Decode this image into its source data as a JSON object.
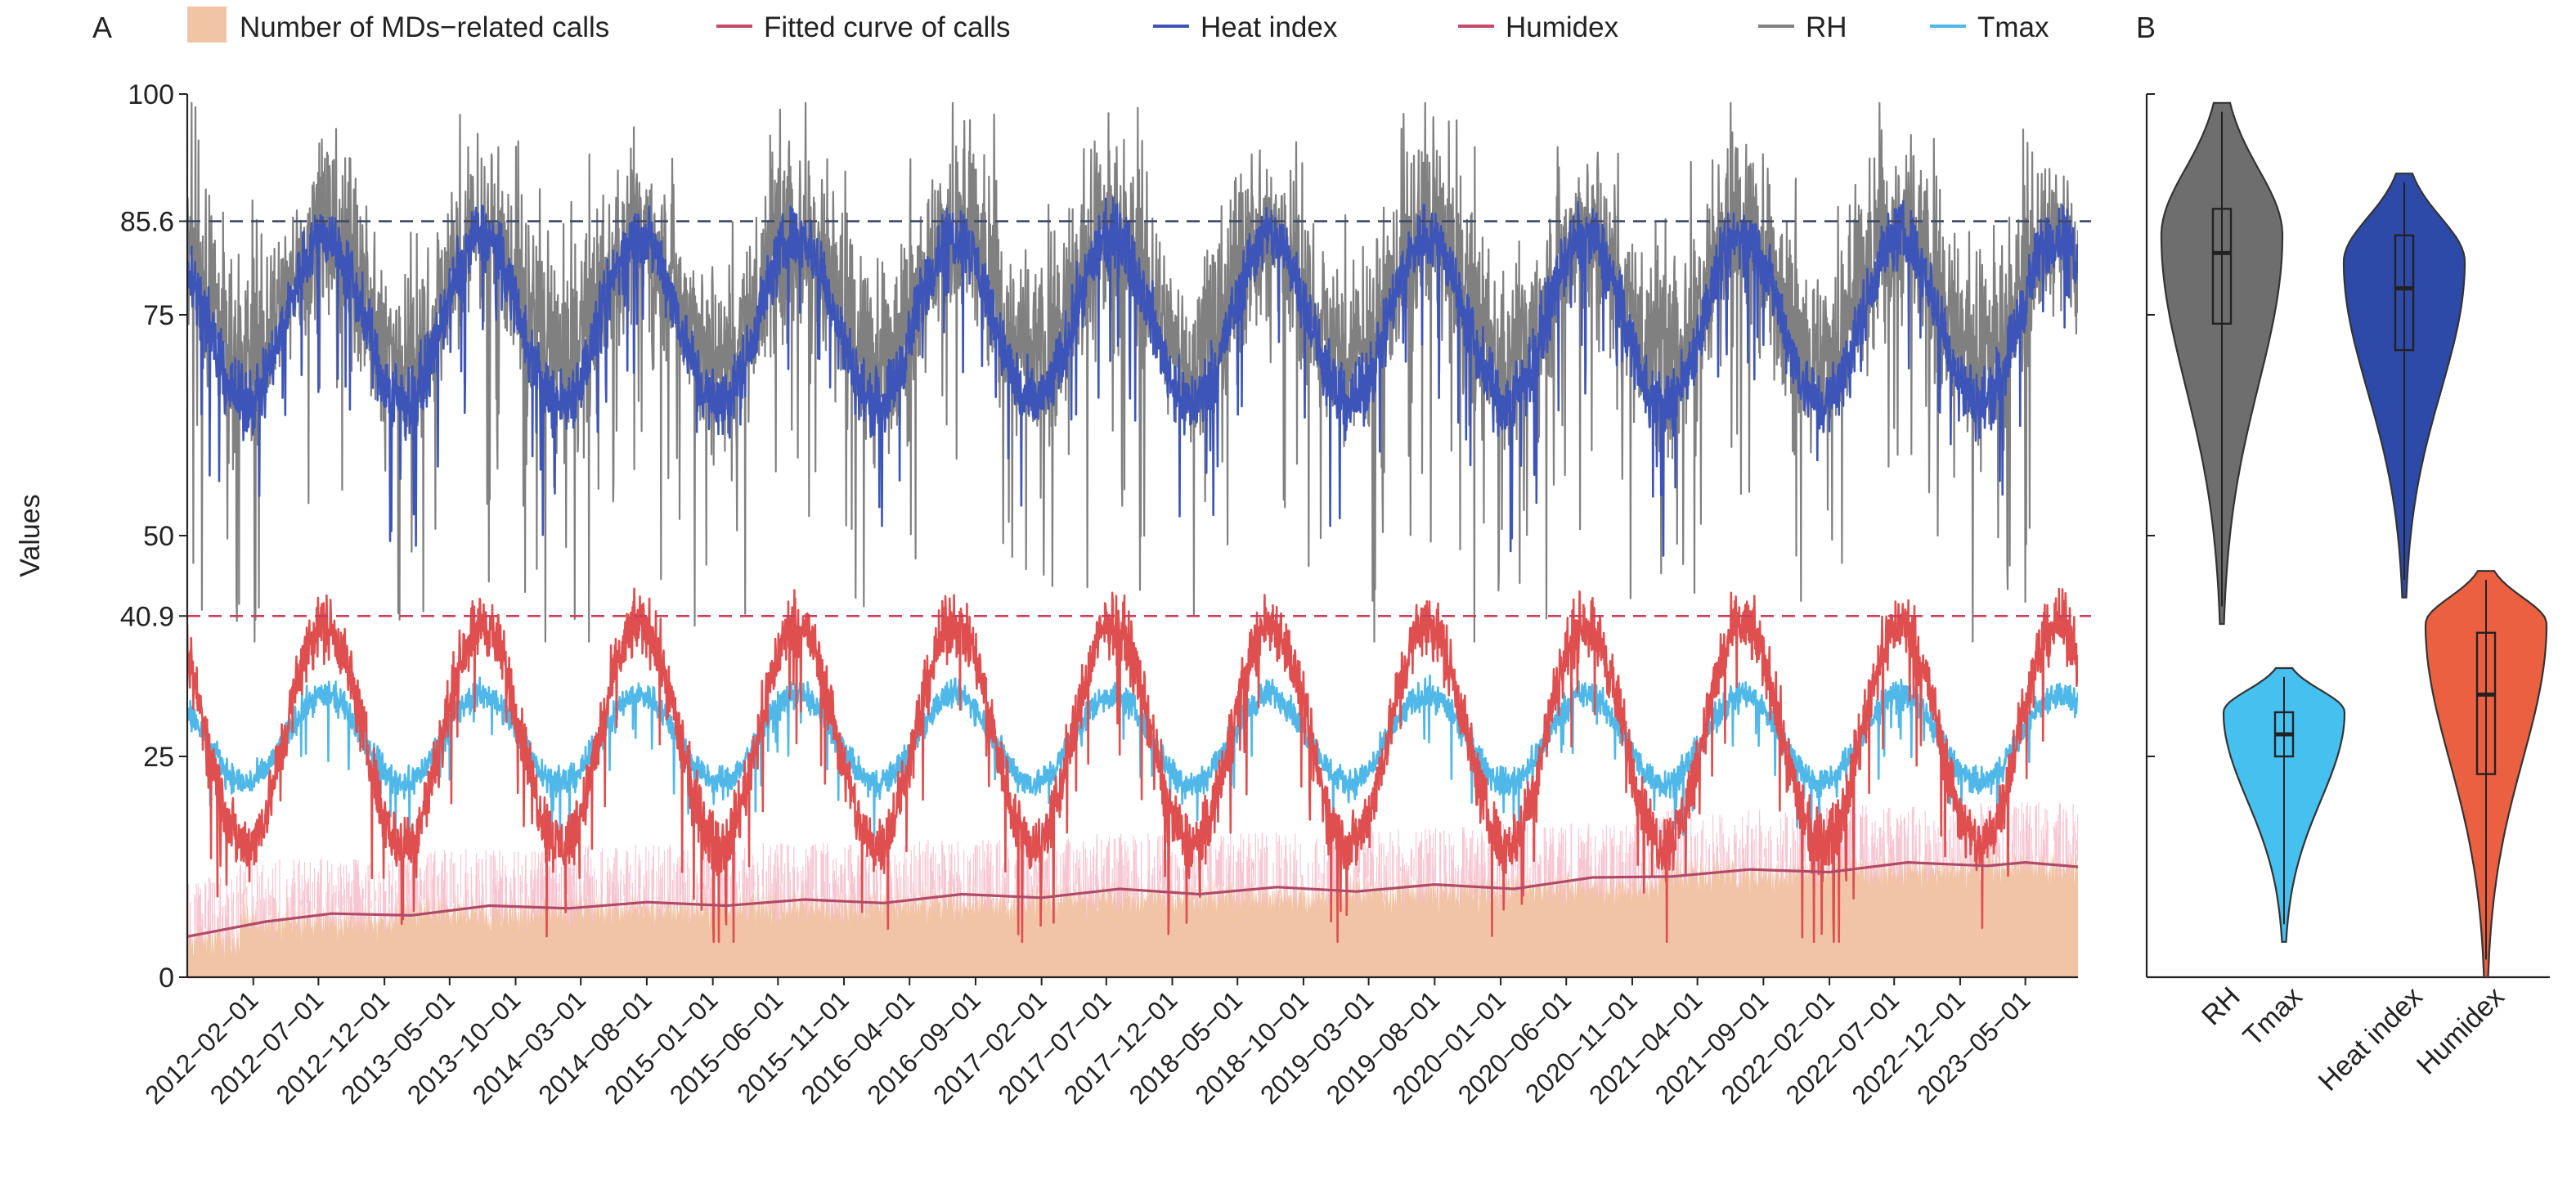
{
  "panel_labels": {
    "a": "A",
    "b": "B"
  },
  "colors": {
    "calls_fill": "#f2c4a6",
    "calls_spikes": "#f5b8c8",
    "fitted": "#b04a6a",
    "heat_index": "#3d55b8",
    "humidex": "#df4f4f",
    "rh": "#808080",
    "tmax": "#4fb8e8",
    "violin_rh": "#6e6e6e",
    "violin_heat": "#2e4aa8",
    "violin_humidex": "#ea6040",
    "violin_tmax": "#45c0ef",
    "ref_high": "#404868",
    "ref_low": "#c8405a"
  },
  "legend": [
    {
      "label": "Number of MDs−related calls",
      "kind": "patch",
      "color": "#f2c4a6"
    },
    {
      "label": "Fitted curve of calls",
      "kind": "line",
      "color": "#c44a6a"
    },
    {
      "label": "Heat index",
      "kind": "line",
      "color": "#3d55b8"
    },
    {
      "label": "Humidex",
      "kind": "line",
      "color": "#c44a6a"
    },
    {
      "label": "RH",
      "kind": "line",
      "color": "#808080"
    },
    {
      "label": "Tmax",
      "kind": "line",
      "color": "#4fb8e8"
    }
  ],
  "chart_data": [
    {
      "panel": "A",
      "type": "line",
      "ylabel": "Values",
      "ylim": [
        0,
        100
      ],
      "yticks": [
        0,
        25,
        40.9,
        50,
        75,
        85.6,
        100
      ],
      "xlim": [
        "2011-09-01",
        "2023-08-31"
      ],
      "x_tick_labels": [
        "2012−02−01",
        "2012−07−01",
        "2012−12−01",
        "2013−05−01",
        "2013−10−01",
        "2014−03−01",
        "2014−08−01",
        "2015−01−01",
        "2015−06−01",
        "2015−11−01",
        "2016−04−01",
        "2016−09−01",
        "2017−02−01",
        "2017−07−01",
        "2017−12−01",
        "2018−05−01",
        "2018−10−01",
        "2019−03−01",
        "2019−08−01",
        "2020−01−01",
        "2020−06−01",
        "2020−11−01",
        "2021−04−01",
        "2021−09−01",
        "2022−02−01",
        "2022−07−01",
        "2022−12−01",
        "2023−05−01"
      ],
      "reference_lines": [
        {
          "value": 85.6,
          "color": "#404868"
        },
        {
          "value": 40.9,
          "color": "#c8405a"
        }
      ],
      "summer_peak_dates": [
        "2012-07-15",
        "2013-07-15",
        "2014-07-15",
        "2015-07-15",
        "2016-07-15",
        "2017-07-15",
        "2018-07-15",
        "2019-07-15",
        "2020-07-15",
        "2021-07-15",
        "2022-07-15",
        "2023-07-15"
      ],
      "series": [
        {
          "name": "RH",
          "type": "line",
          "typical_range": [
            38,
            98
          ],
          "color": "#808080"
        },
        {
          "name": "Heat index",
          "type": "line",
          "seasonal_range": [
            63,
            86
          ],
          "color": "#3d55b8"
        },
        {
          "name": "Humidex",
          "type": "line",
          "seasonal_range": [
            14,
            42
          ],
          "color": "#df4f4f"
        },
        {
          "name": "Tmax",
          "type": "line",
          "seasonal_range": [
            21,
            34
          ],
          "color": "#4fb8e8"
        },
        {
          "name": "Number of MDs−related calls",
          "type": "area",
          "annual_level": {
            "2011": 4.6,
            "2012": 6.5,
            "2013": 7.6,
            "2014": 8.0,
            "2015": 8.3,
            "2016": 8.6,
            "2017": 9.3,
            "2018": 9.5,
            "2019": 10.0,
            "2020": 10.4,
            "2021": 12.0,
            "2022": 12.5,
            "2023": 12.9
          },
          "color": "#f2c4a6"
        },
        {
          "name": "Fitted curve of calls",
          "type": "line",
          "points": [
            [
              "2011-09-01",
              4.6
            ],
            [
              "2012-03-01",
              6.3
            ],
            [
              "2012-08-01",
              7.2
            ],
            [
              "2013-02-01",
              7.0
            ],
            [
              "2013-08-01",
              8.1
            ],
            [
              "2014-02-01",
              7.8
            ],
            [
              "2014-08-01",
              8.5
            ],
            [
              "2015-02-01",
              8.1
            ],
            [
              "2015-08-01",
              8.8
            ],
            [
              "2016-02-01",
              8.4
            ],
            [
              "2016-08-01",
              9.4
            ],
            [
              "2017-02-01",
              9.0
            ],
            [
              "2017-08-01",
              10.0
            ],
            [
              "2018-02-01",
              9.4
            ],
            [
              "2018-08-01",
              10.2
            ],
            [
              "2019-02-01",
              9.7
            ],
            [
              "2019-08-01",
              10.5
            ],
            [
              "2020-02-01",
              10.0
            ],
            [
              "2020-08-01",
              11.3
            ],
            [
              "2021-02-01",
              11.4
            ],
            [
              "2021-08-01",
              12.2
            ],
            [
              "2022-02-01",
              11.9
            ],
            [
              "2022-08-01",
              13.0
            ],
            [
              "2023-02-01",
              12.6
            ],
            [
              "2023-05-01",
              13.0
            ],
            [
              "2023-08-31",
              12.5
            ]
          ],
          "color": "#b04a6a"
        }
      ]
    },
    {
      "panel": "B",
      "type": "violin",
      "ylim": [
        0,
        100
      ],
      "categories": [
        "RH",
        "Tmax",
        "Heat index",
        "Humidex"
      ],
      "violins": [
        {
          "name": "RH",
          "min": 40,
          "max": 99,
          "q1": 74,
          "median": 82,
          "q3": 87,
          "mode": 84,
          "color": "#6e6e6e"
        },
        {
          "name": "Tmax",
          "min": 4,
          "max": 35,
          "q1": 25,
          "median": 27.5,
          "q3": 30,
          "mode": 30,
          "color": "#45c0ef"
        },
        {
          "name": "Heat index",
          "min": 43,
          "max": 91,
          "q1": 71,
          "median": 78,
          "q3": 84,
          "mode": 81,
          "color": "#2e4aa8"
        },
        {
          "name": "Humidex",
          "min": 0,
          "max": 46,
          "q1": 23,
          "median": 32,
          "q3": 39,
          "mode": 40,
          "color": "#ea6040"
        }
      ]
    }
  ]
}
